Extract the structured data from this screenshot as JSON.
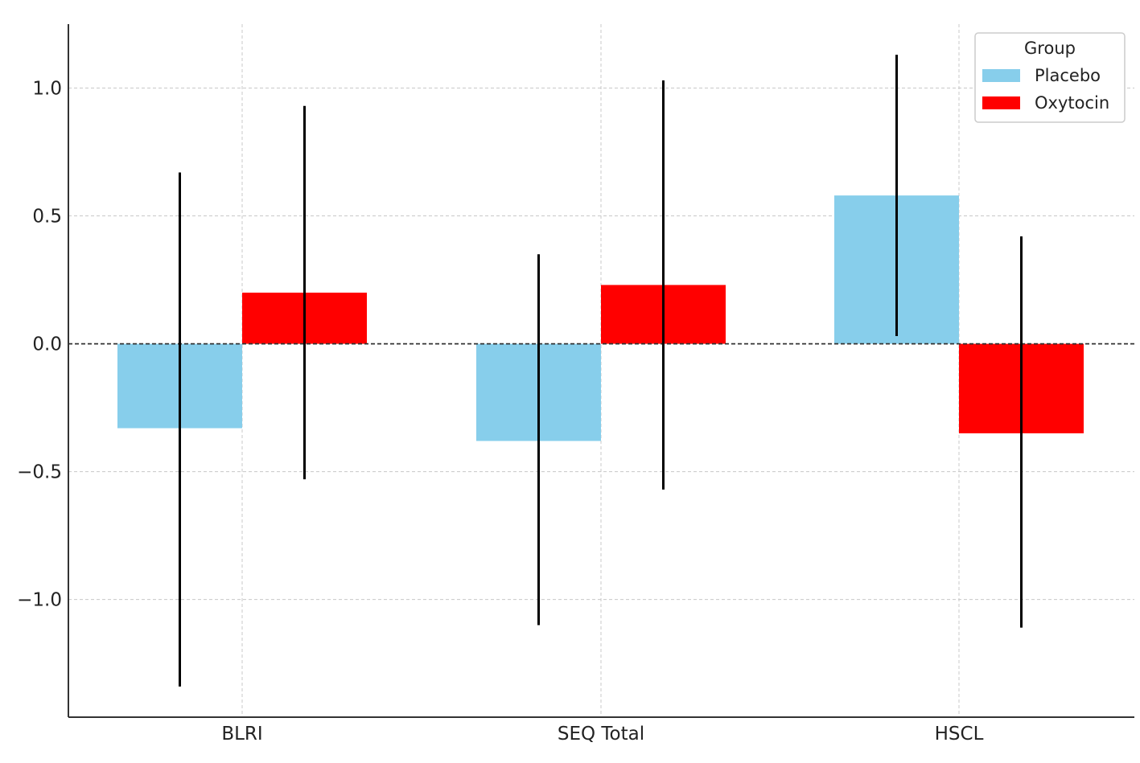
{
  "chart_data": {
    "type": "bar",
    "categories": [
      "BLRI",
      "SEQ Total",
      "HSCL"
    ],
    "series": [
      {
        "name": "Placebo",
        "color": "#87CEEB",
        "values": [
          -0.33,
          -0.38,
          0.58
        ],
        "error_low": [
          -1.34,
          -1.1,
          0.03
        ],
        "error_high": [
          0.67,
          0.35,
          1.13
        ]
      },
      {
        "name": "Oxytocin",
        "color": "#FF0000",
        "values": [
          0.2,
          0.23,
          -0.35
        ],
        "error_low": [
          -0.53,
          -0.57,
          -1.11
        ],
        "error_high": [
          0.93,
          1.03,
          0.42
        ]
      }
    ],
    "y_ticks": [
      1.0,
      0.5,
      0.0,
      -0.5,
      -1.0
    ],
    "y_tick_labels": [
      "1.0",
      "0.5",
      "0.0",
      "−0.5",
      "−1.0"
    ],
    "ylim": [
      -1.46,
      1.25
    ],
    "reference_line": 0.0,
    "legend": {
      "title": "Group",
      "placement": "top-right"
    },
    "grid": true,
    "title": "",
    "xlabel": "",
    "ylabel": ""
  }
}
